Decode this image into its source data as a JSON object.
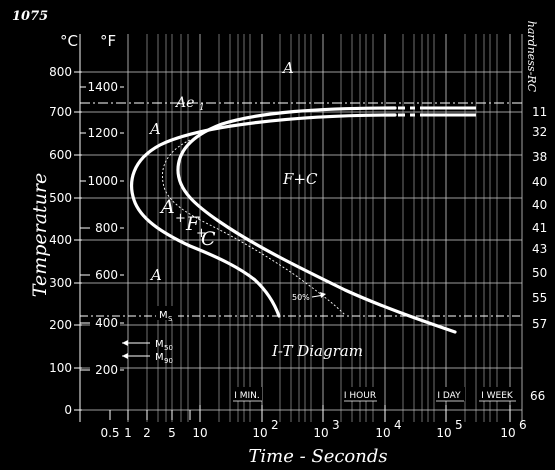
{
  "header": {
    "steel_grade": "1075",
    "celsius_unit": "°C",
    "fahrenheit_unit": "°F",
    "hardness_label": "hardness-RC"
  },
  "axes": {
    "y_title": "Temperature",
    "x_title": "Time - Seconds",
    "celsius_ticks": [
      "800",
      "700",
      "600",
      "500",
      "400",
      "300",
      "200",
      "100",
      "0"
    ],
    "fahrenheit_ticks": [
      "1400",
      "1200",
      "1000",
      "800",
      "600",
      "400",
      "200"
    ],
    "hardness_ticks": [
      "11",
      "32",
      "38",
      "40",
      "40",
      "41",
      "43",
      "50",
      "55",
      "57",
      "66"
    ],
    "time_ticks": [
      "0.5",
      "1",
      "2",
      "5",
      "10",
      "10",
      "2",
      "10",
      "3",
      "10",
      "4",
      "10",
      "5",
      "10",
      "6"
    ]
  },
  "time_markers": [
    "I MIN.",
    "I HOUR",
    "I DAY",
    "I WEEK"
  ],
  "regions": {
    "austenite_top": "A",
    "ae1": "Ae",
    "ae1_sub": "1",
    "austenite_upper_left": "A",
    "ferrite_carbide": "F+C",
    "transforming_a": "A",
    "transforming_plus1": "+",
    "transforming_f": "F",
    "transforming_plus2": "+",
    "transforming_c": "C",
    "austenite_lower": "A",
    "fifty_percent": "50%",
    "ms": "M",
    "ms_sub": "S",
    "m50": "M",
    "m50_sub": "50",
    "m90": "M",
    "m90_sub": "90",
    "diagram_title": "I-T Diagram"
  }
}
